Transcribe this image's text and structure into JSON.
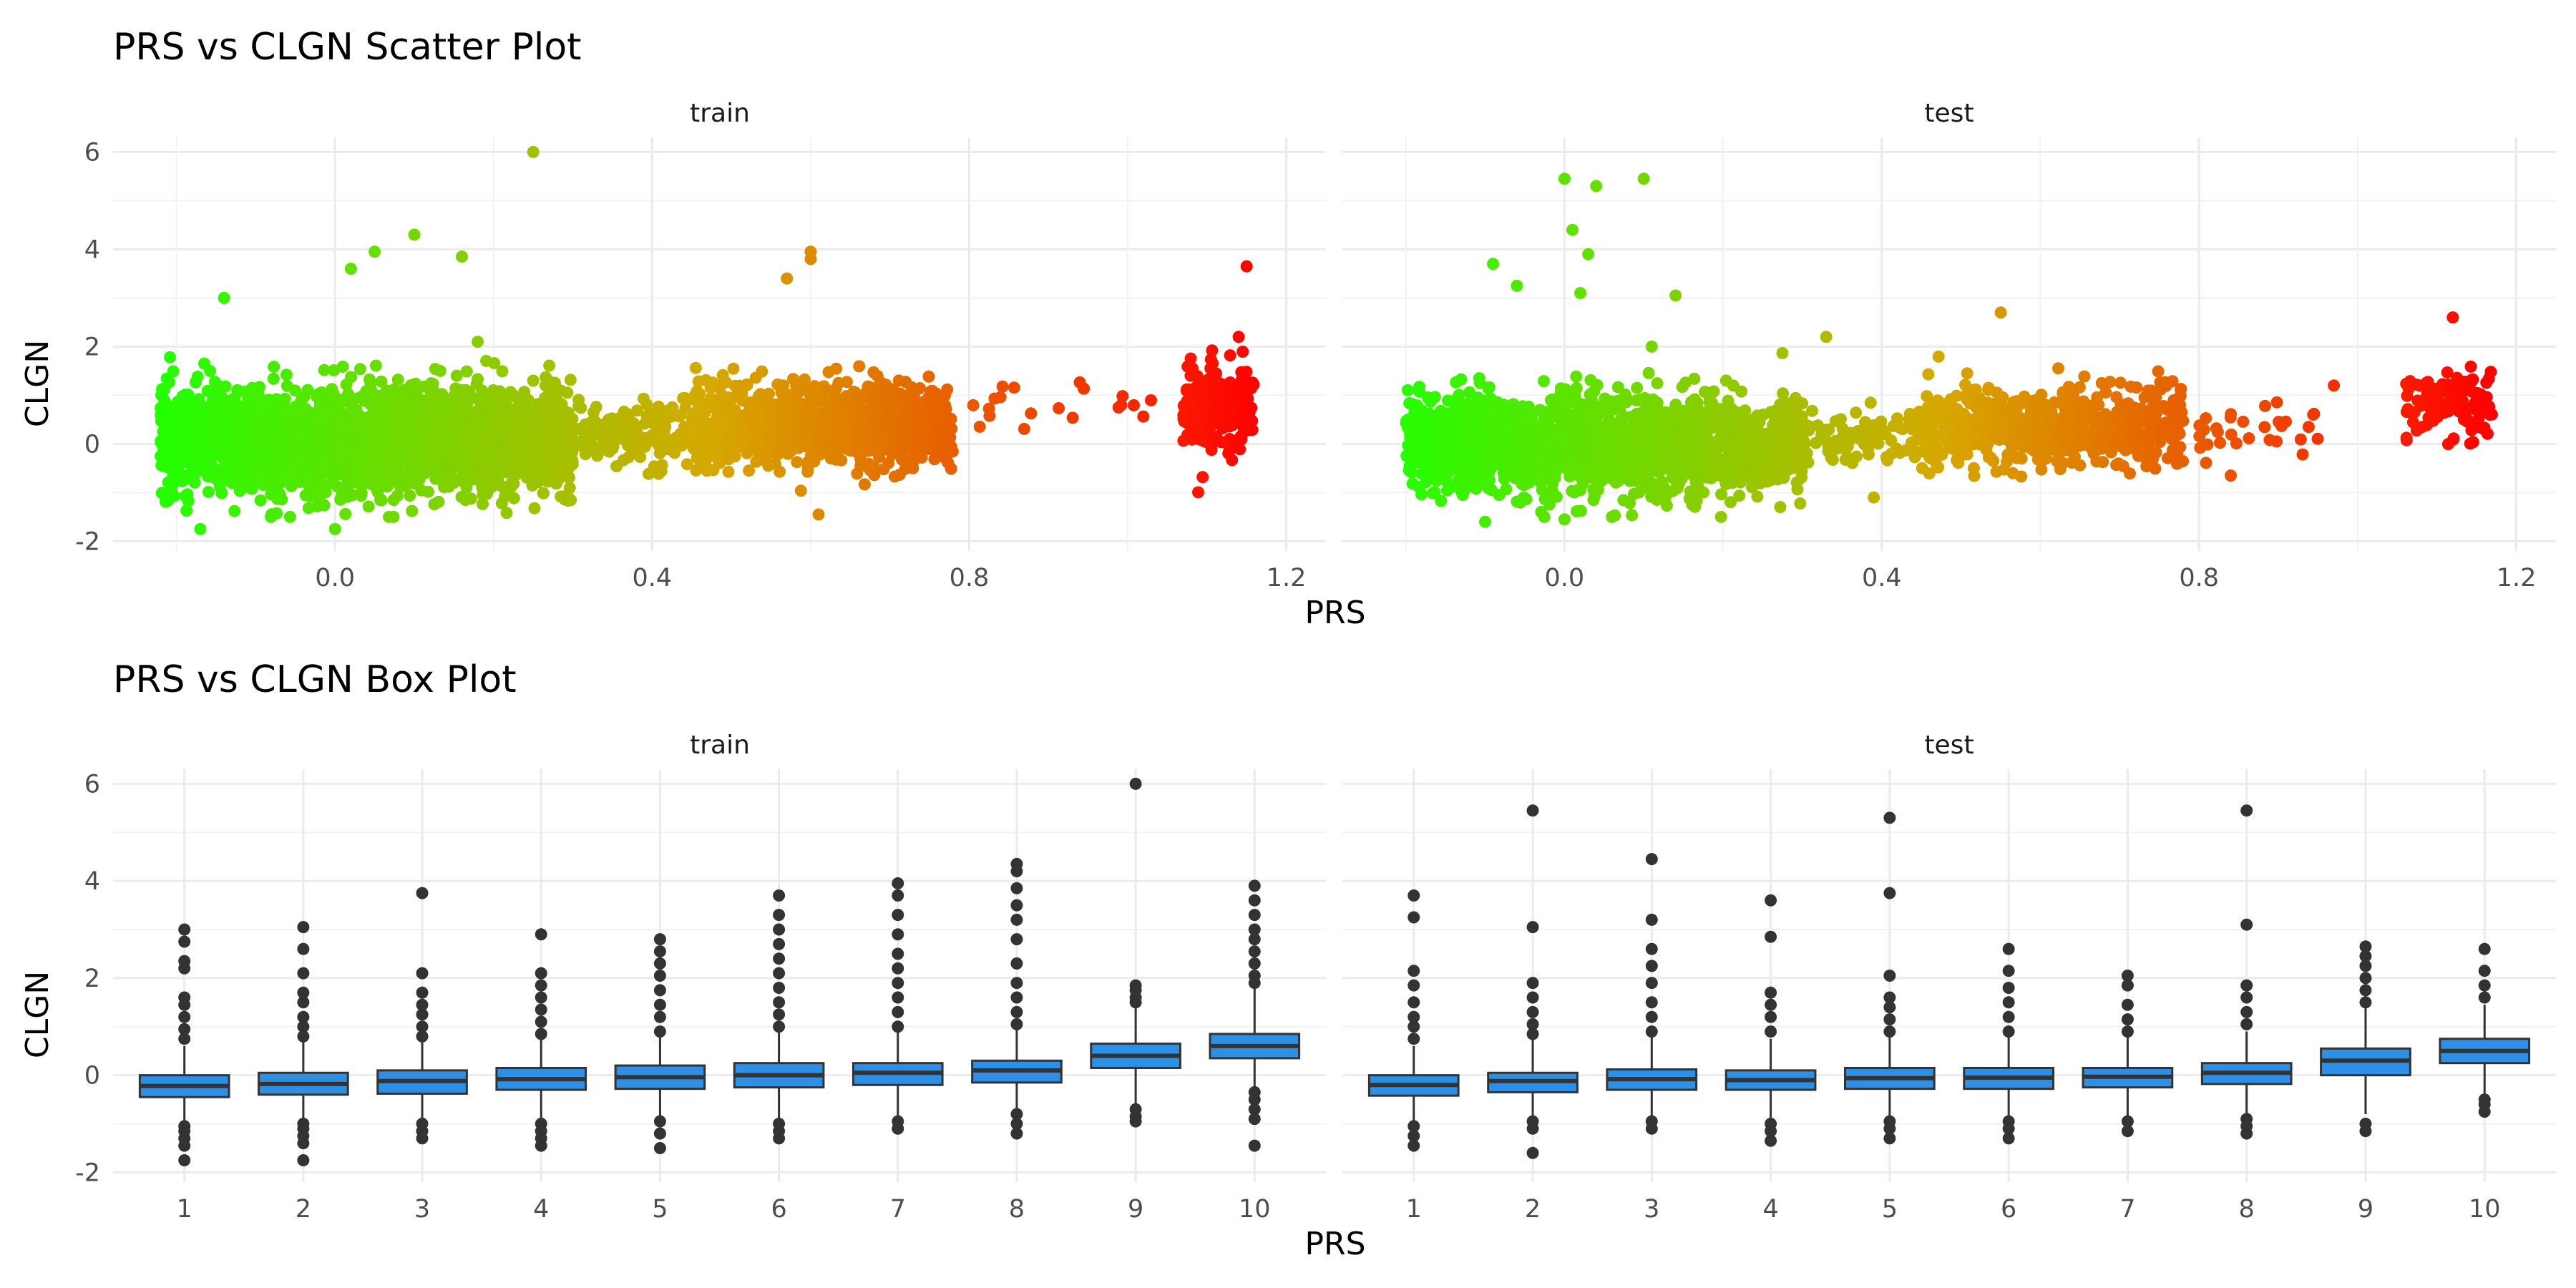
{
  "chart_data": [
    {
      "type": "scatter",
      "title": "PRS vs CLGN Scatter Plot",
      "xlabel": "PRS",
      "ylabel": "CLGN",
      "facets": [
        "train",
        "test"
      ],
      "xlim": [
        -0.28,
        1.25
      ],
      "ylim": [
        -2.2,
        6.3
      ],
      "xticks": [
        "0.0",
        "0.4",
        "0.8",
        "1.2"
      ],
      "yticks": [
        "-2",
        "0",
        "2",
        "4",
        "6"
      ],
      "xtick_values": [
        0.0,
        0.4,
        0.8,
        1.2
      ],
      "ytick_values": [
        -2,
        0,
        2,
        4,
        6
      ],
      "color_scale": {
        "low": "#22ff00",
        "mid": "#d6a800",
        "high": "#ff0000",
        "domain": [
          -0.22,
          1.17
        ]
      },
      "grid": true,
      "legend": "none",
      "clusters": {
        "train": [
          {
            "xmin": -0.22,
            "xmax": 0.3,
            "ymean": 0.1,
            "ysd": 0.55,
            "n": 2200
          },
          {
            "xmin": 0.3,
            "xmax": 0.45,
            "ymean": 0.2,
            "ysd": 0.3,
            "n": 140
          },
          {
            "xmin": 0.45,
            "xmax": 0.78,
            "ymean": 0.4,
            "ysd": 0.42,
            "n": 900
          },
          {
            "xmin": 0.78,
            "xmax": 1.05,
            "ymean": 0.75,
            "ysd": 0.3,
            "n": 20
          },
          {
            "xmin": 1.07,
            "xmax": 1.16,
            "ymean": 0.75,
            "ysd": 0.45,
            "n": 220
          }
        ],
        "test": [
          {
            "xmin": -0.2,
            "xmax": 0.3,
            "ymean": 0.0,
            "ysd": 0.5,
            "n": 1700
          },
          {
            "xmin": 0.3,
            "xmax": 0.45,
            "ymean": 0.15,
            "ysd": 0.3,
            "n": 90
          },
          {
            "xmin": 0.45,
            "xmax": 0.78,
            "ymean": 0.35,
            "ysd": 0.4,
            "n": 650
          },
          {
            "xmin": 0.8,
            "xmax": 0.95,
            "ymean": 0.2,
            "ysd": 0.3,
            "n": 30
          },
          {
            "xmin": 1.06,
            "xmax": 1.17,
            "ymean": 0.8,
            "ysd": 0.4,
            "n": 110
          }
        ]
      },
      "outliers": {
        "train": [
          [
            0.25,
            6.0
          ],
          [
            -0.14,
            3.0
          ],
          [
            0.1,
            4.3
          ],
          [
            0.05,
            3.95
          ],
          [
            0.16,
            3.85
          ],
          [
            0.6,
            3.95
          ],
          [
            0.6,
            3.8
          ],
          [
            0.57,
            3.4
          ],
          [
            1.15,
            3.65
          ],
          [
            1.14,
            2.2
          ],
          [
            0.0,
            -1.75
          ],
          [
            -0.17,
            -1.75
          ],
          [
            0.61,
            -1.45
          ],
          [
            0.02,
            3.6
          ],
          [
            0.18,
            2.1
          ],
          [
            0.25,
            1.3
          ]
        ],
        "test": [
          [
            0.0,
            5.45
          ],
          [
            0.1,
            5.45
          ],
          [
            0.04,
            5.3
          ],
          [
            0.01,
            4.4
          ],
          [
            0.03,
            3.9
          ],
          [
            -0.09,
            3.7
          ],
          [
            0.02,
            3.1
          ],
          [
            0.14,
            3.05
          ],
          [
            -0.06,
            3.25
          ],
          [
            0.33,
            2.2
          ],
          [
            0.55,
            2.7
          ],
          [
            1.12,
            2.6
          ],
          [
            0.0,
            -1.55
          ],
          [
            -0.1,
            -1.6
          ],
          [
            0.39,
            -1.1
          ],
          [
            0.84,
            -0.65
          ],
          [
            0.97,
            1.2
          ],
          [
            0.11,
            2.0
          ]
        ]
      }
    },
    {
      "type": "box",
      "title": "PRS vs CLGN Box Plot",
      "xlabel": "PRS",
      "ylabel": "CLGN",
      "facets": [
        "train",
        "test"
      ],
      "categories": [
        "1",
        "2",
        "3",
        "4",
        "5",
        "6",
        "7",
        "8",
        "9",
        "10"
      ],
      "ylim": [
        -2.2,
        6.3
      ],
      "yticks": [
        "-2",
        "0",
        "2",
        "4",
        "6"
      ],
      "ytick_values": [
        -2,
        0,
        2,
        4,
        6
      ],
      "fill_color": "#2d8fe6",
      "grid": true,
      "legend": "none",
      "series": {
        "train": [
          {
            "q1": -0.45,
            "median": -0.22,
            "q3": 0.0,
            "low": -1.0,
            "high": 0.6,
            "out_low": [
              -1.05,
              -1.15,
              -1.3,
              -1.45,
              -1.75
            ],
            "out_high": [
              0.75,
              0.95,
              1.2,
              1.45,
              1.6,
              2.2,
              2.35,
              2.75,
              3.0
            ]
          },
          {
            "q1": -0.4,
            "median": -0.18,
            "q3": 0.05,
            "low": -0.95,
            "high": 0.7,
            "out_low": [
              -1.0,
              -1.1,
              -1.25,
              -1.4,
              -1.75
            ],
            "out_high": [
              0.8,
              1.0,
              1.2,
              1.5,
              1.7,
              2.1,
              2.6,
              3.05
            ]
          },
          {
            "q1": -0.38,
            "median": -0.12,
            "q3": 0.1,
            "low": -0.95,
            "high": 0.7,
            "out_low": [
              -1.0,
              -1.15,
              -1.3
            ],
            "out_high": [
              0.8,
              1.0,
              1.25,
              1.45,
              1.7,
              2.1,
              3.75
            ]
          },
          {
            "q1": -0.3,
            "median": -0.08,
            "q3": 0.15,
            "low": -0.9,
            "high": 0.75,
            "out_low": [
              -1.0,
              -1.15,
              -1.3,
              -1.45
            ],
            "out_high": [
              0.85,
              1.1,
              1.35,
              1.6,
              1.85,
              2.1,
              2.9
            ]
          },
          {
            "q1": -0.28,
            "median": -0.04,
            "q3": 0.2,
            "low": -0.9,
            "high": 0.8,
            "out_low": [
              -0.95,
              -1.2,
              -1.5
            ],
            "out_high": [
              0.9,
              1.2,
              1.45,
              1.75,
              2.05,
              2.3,
              2.55,
              2.8
            ]
          },
          {
            "q1": -0.25,
            "median": 0.0,
            "q3": 0.25,
            "low": -0.95,
            "high": 0.9,
            "out_low": [
              -1.0,
              -1.15,
              -1.3
            ],
            "out_high": [
              1.0,
              1.25,
              1.5,
              1.8,
              2.1,
              2.4,
              2.7,
              3.0,
              3.3,
              3.7
            ]
          },
          {
            "q1": -0.2,
            "median": 0.05,
            "q3": 0.25,
            "low": -0.9,
            "high": 0.9,
            "out_low": [
              -0.95,
              -1.1
            ],
            "out_high": [
              1.0,
              1.3,
              1.6,
              1.9,
              2.2,
              2.5,
              2.9,
              3.3,
              3.7,
              3.95
            ]
          },
          {
            "q1": -0.15,
            "median": 0.1,
            "q3": 0.3,
            "low": -0.75,
            "high": 0.95,
            "out_low": [
              -0.8,
              -1.0,
              -1.2
            ],
            "out_high": [
              1.05,
              1.3,
              1.6,
              1.9,
              2.3,
              2.8,
              3.2,
              3.5,
              3.85,
              4.2,
              4.35
            ]
          },
          {
            "q1": 0.15,
            "median": 0.4,
            "q3": 0.65,
            "low": -0.65,
            "high": 1.4,
            "out_low": [
              -0.7,
              -0.85,
              -0.95
            ],
            "out_high": [
              1.5,
              1.6,
              1.75,
              1.85,
              6.0
            ]
          },
          {
            "q1": 0.35,
            "median": 0.6,
            "q3": 0.85,
            "low": -0.3,
            "high": 1.8,
            "out_low": [
              -0.35,
              -0.5,
              -0.7,
              -0.9,
              -1.45
            ],
            "out_high": [
              1.9,
              2.05,
              2.3,
              2.55,
              2.8,
              3.0,
              3.3,
              3.6,
              3.9
            ]
          }
        ],
        "test": [
          {
            "q1": -0.42,
            "median": -0.2,
            "q3": 0.0,
            "low": -1.0,
            "high": 0.6,
            "out_low": [
              -1.05,
              -1.25,
              -1.45
            ],
            "out_high": [
              0.75,
              1.0,
              1.2,
              1.5,
              1.85,
              2.15,
              3.25,
              3.7
            ]
          },
          {
            "q1": -0.35,
            "median": -0.12,
            "q3": 0.05,
            "low": -0.9,
            "high": 0.75,
            "out_low": [
              -0.95,
              -1.1,
              -1.6
            ],
            "out_high": [
              0.85,
              1.05,
              1.3,
              1.6,
              1.9,
              3.05,
              5.45
            ]
          },
          {
            "q1": -0.3,
            "median": -0.08,
            "q3": 0.12,
            "low": -0.9,
            "high": 0.8,
            "out_low": [
              -0.95,
              -1.1
            ],
            "out_high": [
              0.9,
              1.2,
              1.5,
              1.9,
              2.25,
              2.6,
              3.2,
              4.45
            ]
          },
          {
            "q1": -0.3,
            "median": -0.1,
            "q3": 0.1,
            "low": -0.9,
            "high": 0.75,
            "out_low": [
              -1.0,
              -1.15,
              -1.35
            ],
            "out_high": [
              0.9,
              1.2,
              1.45,
              1.7,
              2.85,
              3.6
            ]
          },
          {
            "q1": -0.28,
            "median": -0.06,
            "q3": 0.15,
            "low": -0.9,
            "high": 0.8,
            "out_low": [
              -0.95,
              -1.1,
              -1.3
            ],
            "out_high": [
              0.9,
              1.15,
              1.4,
              1.6,
              2.05,
              3.75,
              5.3
            ]
          },
          {
            "q1": -0.28,
            "median": -0.05,
            "q3": 0.15,
            "low": -0.9,
            "high": 0.8,
            "out_low": [
              -0.95,
              -1.1,
              -1.3
            ],
            "out_high": [
              0.9,
              1.2,
              1.5,
              1.8,
              2.15,
              2.6
            ]
          },
          {
            "q1": -0.25,
            "median": -0.03,
            "q3": 0.15,
            "low": -0.85,
            "high": 0.8,
            "out_low": [
              -0.95,
              -1.15
            ],
            "out_high": [
              0.9,
              1.15,
              1.45,
              1.85,
              2.05
            ]
          },
          {
            "q1": -0.18,
            "median": 0.05,
            "q3": 0.25,
            "low": -0.8,
            "high": 0.9,
            "out_low": [
              -0.9,
              -1.05,
              -1.2
            ],
            "out_high": [
              1.05,
              1.3,
              1.6,
              1.85,
              3.1,
              5.45
            ]
          },
          {
            "q1": 0.0,
            "median": 0.3,
            "q3": 0.55,
            "low": -0.8,
            "high": 1.4,
            "out_low": [
              -1.0,
              -1.15
            ],
            "out_high": [
              1.5,
              1.75,
              2.0,
              2.25,
              2.45,
              2.65
            ]
          },
          {
            "q1": 0.25,
            "median": 0.5,
            "q3": 0.75,
            "low": -0.4,
            "high": 1.45,
            "out_low": [
              -0.5,
              -0.6,
              -0.75
            ],
            "out_high": [
              1.6,
              1.85,
              2.15,
              2.6
            ]
          }
        ]
      }
    }
  ]
}
